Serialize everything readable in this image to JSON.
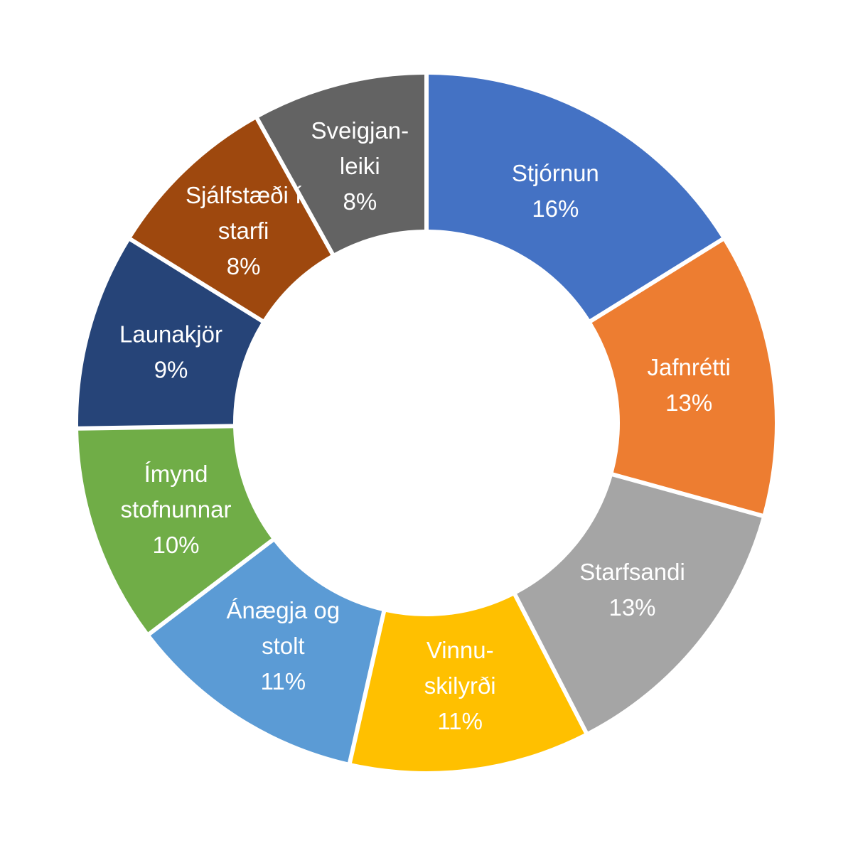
{
  "chart_data": {
    "type": "pie",
    "variant": "donut",
    "title": "",
    "legend": "none",
    "labels_inside": true,
    "slices": [
      {
        "lines": [
          "Stjórnun"
        ],
        "value": 16,
        "pct_label": "16%",
        "color": "#4472C4"
      },
      {
        "lines": [
          "Jafnrétti"
        ],
        "value": 13,
        "pct_label": "13%",
        "color": "#ED7D31"
      },
      {
        "lines": [
          "Starfsandi"
        ],
        "value": 13,
        "pct_label": "13%",
        "color": "#A5A5A5"
      },
      {
        "lines": [
          "Vinnu-",
          "skilyrði"
        ],
        "value": 11,
        "pct_label": "11%",
        "color": "#FFC000"
      },
      {
        "lines": [
          "Ánægja og",
          "stolt"
        ],
        "value": 11,
        "pct_label": "11%",
        "color": "#5B9BD5"
      },
      {
        "lines": [
          "Ímynd",
          "stofnunnar"
        ],
        "value": 10,
        "pct_label": "10%",
        "color": "#70AD47"
      },
      {
        "lines": [
          "Launakjör"
        ],
        "value": 9,
        "pct_label": "9%",
        "color": "#264478"
      },
      {
        "lines": [
          "Sjálfstæði í",
          "starfi"
        ],
        "value": 8,
        "pct_label": "8%",
        "color": "#9E480E"
      },
      {
        "lines": [
          "Sveigjan-",
          "leiki"
        ],
        "value": 8,
        "pct_label": "8%",
        "color": "#636363"
      }
    ]
  }
}
